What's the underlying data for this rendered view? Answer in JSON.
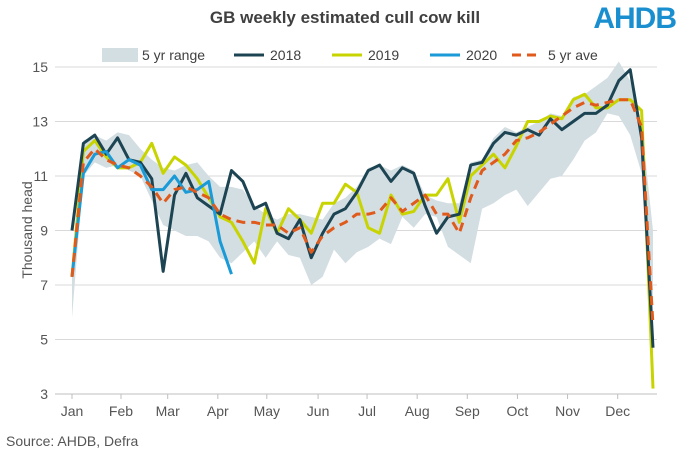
{
  "title": "GB weekly estimated cull cow kill",
  "logo": "AHDB",
  "source": "Source: AHDB, Defra",
  "colors": {
    "range": "#d3dee3",
    "s2018": "#1d4452",
    "s2019": "#c8d400",
    "s2020": "#1a9ad6",
    "avg": "#e05a1c"
  },
  "chart_data": {
    "type": "line",
    "title": "GB weekly estimated cull cow kill",
    "ylabel": "Thousand head",
    "xlabel": "",
    "ylim": [
      3,
      15
    ],
    "yticks": [
      "3",
      "5",
      "7",
      "9",
      "11",
      "13",
      "15"
    ],
    "xlim": [
      1,
      52
    ],
    "month_labels": [
      "Jan",
      "Feb",
      "Mar",
      "Apr",
      "May",
      "Jun",
      "Jul",
      "Aug",
      "Sep",
      "Oct",
      "Nov",
      "Dec"
    ],
    "month_weeks": [
      1,
      5.3,
      9.4,
      13.8,
      18.1,
      22.6,
      26.9,
      31.3,
      35.7,
      40.1,
      44.5,
      48.9
    ],
    "grid": true,
    "legend_position": "top",
    "legend": [
      "5 yr range",
      "2018",
      "2019",
      "2020",
      "5 yr ave"
    ],
    "range_high": [
      7.8,
      12.3,
      12.5,
      12.3,
      12.6,
      12.5,
      12.0,
      11.6,
      11.3,
      11.2,
      11.4,
      11.5,
      11.0,
      10.6,
      10.6,
      10.5,
      9.9,
      9.6,
      9.4,
      9.6,
      9.6,
      9.5,
      9.4,
      10.0,
      10.2,
      10.6,
      11.3,
      11.4,
      11.2,
      11.4,
      11.2,
      10.3,
      10.1,
      10.0,
      10.0,
      11.5,
      11.6,
      12.4,
      12.8,
      12.6,
      12.8,
      13.0,
      13.3,
      13.2,
      13.9,
      14.0,
      14.3,
      14.6,
      15.2,
      14.5,
      12.9,
      9.0
    ],
    "range_low": [
      5.8,
      11.0,
      11.5,
      11.3,
      11.4,
      11.2,
      11.0,
      10.1,
      9.2,
      9.0,
      8.8,
      8.8,
      8.6,
      8.0,
      7.8,
      8.2,
      8.6,
      8.0,
      8.6,
      8.1,
      8.0,
      7.0,
      7.3,
      8.3,
      7.8,
      8.2,
      8.4,
      8.7,
      8.5,
      9.5,
      9.1,
      9.6,
      9.5,
      8.4,
      8.1,
      7.8,
      9.8,
      10.0,
      10.3,
      10.5,
      9.9,
      10.4,
      10.9,
      11.0,
      11.6,
      12.3,
      12.6,
      13.3,
      13.2,
      12.5,
      11.1,
      3.5
    ],
    "series": [
      {
        "name": "2018",
        "values": [
          9.0,
          12.2,
          12.5,
          11.8,
          12.4,
          11.6,
          11.5,
          10.9,
          7.5,
          10.3,
          11.1,
          10.2,
          9.9,
          9.6,
          11.2,
          10.8,
          9.8,
          10.0,
          8.9,
          8.7,
          9.4,
          8.0,
          8.9,
          9.6,
          9.8,
          10.4,
          11.2,
          11.4,
          10.8,
          11.3,
          11.1,
          9.9,
          8.9,
          9.5,
          9.6,
          11.4,
          11.5,
          12.2,
          12.6,
          12.5,
          12.7,
          12.5,
          13.1,
          12.7,
          13.0,
          13.3,
          13.3,
          13.6,
          14.5,
          14.9,
          12.4,
          4.7
        ]
      },
      {
        "name": "2019",
        "values": [
          7.3,
          11.9,
          12.3,
          11.7,
          11.3,
          11.3,
          11.5,
          12.2,
          11.1,
          11.7,
          11.4,
          10.9,
          10.2,
          9.5,
          9.3,
          8.6,
          7.8,
          9.8,
          8.9,
          9.8,
          9.4,
          8.9,
          10.0,
          10.0,
          10.7,
          10.4,
          9.1,
          8.9,
          10.3,
          9.6,
          9.7,
          10.3,
          10.3,
          10.9,
          9.3,
          11.0,
          11.4,
          11.8,
          11.3,
          12.1,
          13.0,
          13.0,
          13.2,
          13.1,
          13.8,
          14.0,
          13.5,
          13.5,
          13.8,
          13.8,
          13.4,
          3.2
        ]
      },
      {
        "name": "2020",
        "values": [
          7.3,
          11.1,
          11.8,
          11.9,
          11.3,
          11.6,
          11.4,
          10.5,
          10.5,
          11.0,
          10.4,
          10.5,
          10.8,
          8.6,
          7.4
        ]
      },
      {
        "name": "5 yr ave",
        "dashed": true,
        "values": [
          7.3,
          11.5,
          12.0,
          11.6,
          11.4,
          11.3,
          11.0,
          10.6,
          10.0,
          10.5,
          10.6,
          10.4,
          10.2,
          9.6,
          9.4,
          9.3,
          9.3,
          9.2,
          9.2,
          8.9,
          9.1,
          8.2,
          8.8,
          9.1,
          9.3,
          9.6,
          9.6,
          9.7,
          10.2,
          9.7,
          10.0,
          10.3,
          9.6,
          9.6,
          8.9,
          10.2,
          11.2,
          11.5,
          11.8,
          12.3,
          12.4,
          12.6,
          12.9,
          13.2,
          13.5,
          13.7,
          13.6,
          13.7,
          13.8,
          13.8,
          12.8,
          5.5
        ]
      }
    ]
  }
}
